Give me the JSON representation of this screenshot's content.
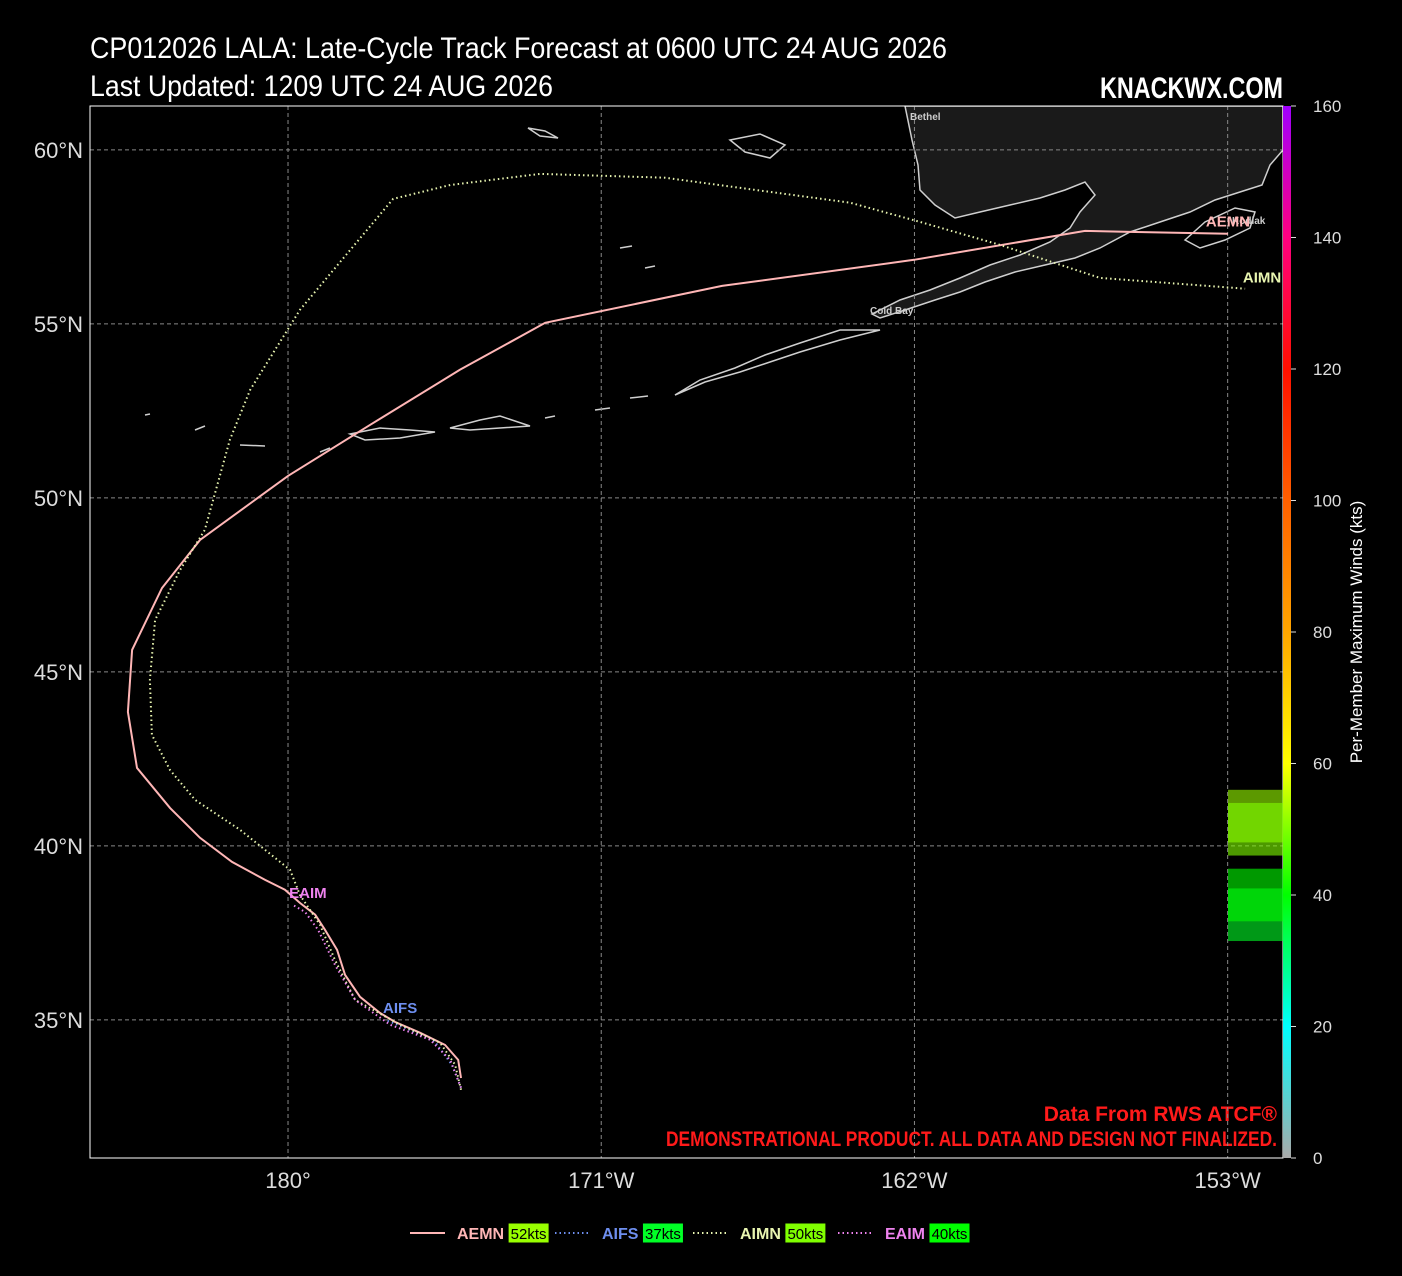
{
  "chart_data": {
    "type": "line",
    "title": "CP012026 LALA: Late-Cycle Track Forecast at 0600 UTC 24 AUG 2026",
    "subtitle": "Last Updated: 1209 UTC 24 AUG 2026",
    "brand": "KNACKWX.COM",
    "source": "Data From RWS ATCF®",
    "disclaimer": "DEMONSTRATIONAL PRODUCT. ALL DATA AND DESIGN NOT FINALIZED.",
    "places": [
      "Bethel",
      "Cold Bay",
      "Kodiak"
    ],
    "xlim": [
      174.31,
      208.59
    ],
    "ylim": [
      31.03,
      61.26
    ],
    "xticks": [
      {
        "value": 180,
        "label": "180°"
      },
      {
        "value": 189,
        "label": "171°W"
      },
      {
        "value": 198,
        "label": "162°W"
      },
      {
        "value": 207,
        "label": "153°W"
      }
    ],
    "yticks": [
      {
        "value": 35,
        "label": "35°N"
      },
      {
        "value": 40,
        "label": "40°N"
      },
      {
        "value": 45,
        "label": "45°N"
      },
      {
        "value": 50,
        "label": "50°N"
      },
      {
        "value": 55,
        "label": "55°N"
      },
      {
        "value": 60,
        "label": "60°N"
      }
    ],
    "grid": true,
    "colorbar": {
      "label": "Per-Member Maximum Winds (kts)",
      "lim": [
        0,
        160
      ],
      "ticks": [
        0,
        20,
        40,
        60,
        80,
        100,
        120,
        140,
        160
      ],
      "colors": [
        "#aaaaaa",
        "#00ffff",
        "#00ff00",
        "#ffff00",
        "#ffa500",
        "#ff6000",
        "#ff1000",
        "#ff0080",
        "#a000ff"
      ]
    },
    "series": [
      {
        "name": "AEMN",
        "color": "#ffb6b6",
        "style": "solid",
        "wind": 52,
        "wind_label": "52kts",
        "x": [
          184.97,
          184.89,
          184.51,
          183.79,
          183.07,
          182.64,
          182.07,
          181.64,
          181.41,
          181.06,
          180.78,
          180.34,
          179.91,
          179.34,
          178.39,
          177.47,
          176.61,
          175.66,
          175.4,
          175.52,
          176.38,
          177.47,
          180.0,
          182.36,
          184.94,
          187.39,
          192.47,
          197.99,
          202.9,
          204.34,
          207.01
        ],
        "values": [
          33.33,
          33.85,
          34.28,
          34.63,
          34.94,
          35.2,
          35.66,
          36.29,
          37.01,
          37.59,
          38.02,
          38.36,
          38.74,
          39.02,
          39.54,
          40.23,
          41.09,
          42.24,
          43.85,
          45.63,
          47.41,
          48.79,
          50.63,
          52.1,
          53.68,
          55.03,
          56.09,
          56.84,
          57.67,
          57.64,
          57.59
        ]
      },
      {
        "name": "AIFS",
        "color": "#6e8ff0",
        "style": "dotted",
        "wind": 37,
        "wind_label": "37kts",
        "x": [
          184.97,
          184.71,
          184.22,
          183.51,
          182.79
        ],
        "values": [
          33.05,
          33.71,
          34.37,
          34.71,
          35.0
        ]
      },
      {
        "name": "AIMN",
        "color": "#e8f5b0",
        "style": "dotted",
        "wind": 50,
        "wind_label": "50kts",
        "x": [
          184.97,
          184.8,
          184.37,
          183.22,
          181.93,
          181.35,
          180.92,
          180.34,
          180.06,
          178.62,
          177.33,
          176.61,
          176.09,
          176.03,
          176.18,
          176.9,
          177.61,
          178.33,
          178.91,
          180.34,
          183.02,
          184.66,
          187.24,
          190.83,
          196.15,
          198.16,
          200.46,
          203.33,
          207.5
        ],
        "values": [
          32.99,
          33.71,
          34.34,
          34.86,
          35.57,
          36.72,
          37.73,
          38.59,
          39.31,
          40.46,
          41.32,
          42.18,
          43.19,
          44.77,
          46.49,
          47.93,
          49.08,
          51.67,
          53.1,
          55.4,
          58.59,
          58.99,
          59.31,
          59.2,
          58.48,
          57.93,
          57.27,
          56.32,
          56.01
        ]
      },
      {
        "name": "EAIM",
        "color": "#ee82ee",
        "style": "dotted",
        "wind": 40,
        "wind_label": "40kts",
        "x": [
          184.97,
          184.66,
          184.08,
          182.93,
          181.93,
          181.35,
          180.86,
          180.49,
          180.14
        ],
        "values": [
          33.05,
          33.85,
          34.43,
          34.86,
          35.57,
          36.58,
          37.59,
          38.1,
          38.3
        ]
      }
    ]
  }
}
